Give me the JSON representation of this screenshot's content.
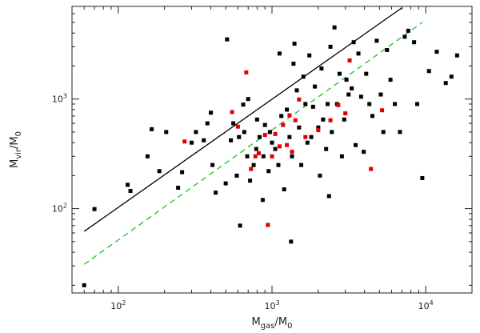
{
  "chart_data": {
    "type": "scatter",
    "title": "",
    "xlabel": {
      "base": "M",
      "sub": "gas",
      "rest": "/M",
      "rest_sub": "0"
    },
    "ylabel": {
      "base": "M",
      "sub": "vir",
      "rest": "/M",
      "rest_sub": "0"
    },
    "xscale": "log",
    "yscale": "log",
    "xlim": [
      50,
      20000
    ],
    "ylim": [
      17,
      7000
    ],
    "grid": false,
    "legend": "none",
    "xticks": [
      {
        "value": 100,
        "base": "10",
        "exp": "2"
      },
      {
        "value": 1000,
        "base": "10",
        "exp": "3"
      },
      {
        "value": 10000,
        "base": "10",
        "exp": "4"
      }
    ],
    "yticks": [
      {
        "value": 100,
        "base": "10",
        "exp": "2"
      },
      {
        "value": 1000,
        "base": "10",
        "exp": "3"
      }
    ],
    "series": [
      {
        "color": "#000000",
        "marker": "square",
        "points": [
          [
            60,
            20
          ],
          [
            70,
            99
          ],
          [
            115,
            165
          ],
          [
            120,
            145
          ],
          [
            155,
            300
          ],
          [
            165,
            530
          ],
          [
            185,
            220
          ],
          [
            205,
            500
          ],
          [
            245,
            155
          ],
          [
            260,
            215
          ],
          [
            300,
            400
          ],
          [
            320,
            500
          ],
          [
            360,
            420
          ],
          [
            380,
            600
          ],
          [
            400,
            750
          ],
          [
            410,
            250
          ],
          [
            430,
            140
          ],
          [
            500,
            170
          ],
          [
            510,
            3500
          ],
          [
            540,
            420
          ],
          [
            560,
            600
          ],
          [
            590,
            200
          ],
          [
            610,
            450
          ],
          [
            620,
            70
          ],
          [
            650,
            890
          ],
          [
            660,
            500
          ],
          [
            690,
            300
          ],
          [
            700,
            1000
          ],
          [
            720,
            180
          ],
          [
            760,
            250
          ],
          [
            790,
            350
          ],
          [
            800,
            650
          ],
          [
            830,
            450
          ],
          [
            870,
            120
          ],
          [
            880,
            300
          ],
          [
            900,
            580
          ],
          [
            950,
            220
          ],
          [
            970,
            500
          ],
          [
            1000,
            400
          ],
          [
            1050,
            350
          ],
          [
            1100,
            250
          ],
          [
            1120,
            2600
          ],
          [
            1150,
            700
          ],
          [
            1200,
            150
          ],
          [
            1250,
            800
          ],
          [
            1300,
            450
          ],
          [
            1330,
            50
          ],
          [
            1350,
            300
          ],
          [
            1380,
            2100
          ],
          [
            1400,
            3200
          ],
          [
            1450,
            1200
          ],
          [
            1500,
            550
          ],
          [
            1550,
            250
          ],
          [
            1600,
            1600
          ],
          [
            1650,
            900
          ],
          [
            1700,
            400
          ],
          [
            1750,
            2500
          ],
          [
            1800,
            450
          ],
          [
            1850,
            850
          ],
          [
            1900,
            1300
          ],
          [
            2000,
            550
          ],
          [
            2050,
            200
          ],
          [
            2100,
            1900
          ],
          [
            2150,
            650
          ],
          [
            2250,
            350
          ],
          [
            2300,
            900
          ],
          [
            2350,
            130
          ],
          [
            2400,
            3000
          ],
          [
            2450,
            500
          ],
          [
            2550,
            4500
          ],
          [
            2650,
            900
          ],
          [
            2750,
            1700
          ],
          [
            2850,
            300
          ],
          [
            2950,
            650
          ],
          [
            3050,
            1500
          ],
          [
            3150,
            1100
          ],
          [
            3300,
            1250
          ],
          [
            3400,
            3300
          ],
          [
            3500,
            380
          ],
          [
            3650,
            2600
          ],
          [
            3800,
            1050
          ],
          [
            3950,
            330
          ],
          [
            4100,
            1700
          ],
          [
            4300,
            900
          ],
          [
            4500,
            700
          ],
          [
            4800,
            3400
          ],
          [
            5100,
            1100
          ],
          [
            5300,
            500
          ],
          [
            5600,
            2800
          ],
          [
            5900,
            1500
          ],
          [
            6300,
            900
          ],
          [
            6800,
            500
          ],
          [
            7300,
            3700
          ],
          [
            7700,
            4200
          ],
          [
            8400,
            3300
          ],
          [
            8800,
            900
          ],
          [
            9500,
            190
          ],
          [
            10500,
            1800
          ],
          [
            11800,
            2700
          ],
          [
            13500,
            1400
          ],
          [
            14700,
            1600
          ],
          [
            16000,
            2500
          ]
        ]
      },
      {
        "color": "#e00000",
        "marker": "square",
        "points": [
          [
            270,
            410
          ],
          [
            550,
            760
          ],
          [
            600,
            560
          ],
          [
            680,
            1750
          ],
          [
            730,
            230
          ],
          [
            780,
            300
          ],
          [
            820,
            320
          ],
          [
            900,
            470
          ],
          [
            940,
            71
          ],
          [
            1000,
            300
          ],
          [
            1050,
            480
          ],
          [
            1120,
            370
          ],
          [
            1180,
            580
          ],
          [
            1250,
            380
          ],
          [
            1300,
            710
          ],
          [
            1350,
            330
          ],
          [
            1420,
            640
          ],
          [
            1500,
            990
          ],
          [
            1650,
            450
          ],
          [
            2000,
            520
          ],
          [
            2400,
            640
          ],
          [
            2700,
            880
          ],
          [
            3000,
            740
          ],
          [
            3200,
            2250
          ],
          [
            4400,
            230
          ],
          [
            5200,
            790
          ]
        ]
      }
    ],
    "lines": [
      {
        "style": "solid",
        "color": "#000000",
        "points": [
          [
            60,
            62
          ],
          [
            7000,
            6800
          ]
        ]
      },
      {
        "style": "dashed",
        "color": "#19c419",
        "points": [
          [
            60,
            31
          ],
          [
            9500,
            5000
          ]
        ]
      }
    ]
  }
}
